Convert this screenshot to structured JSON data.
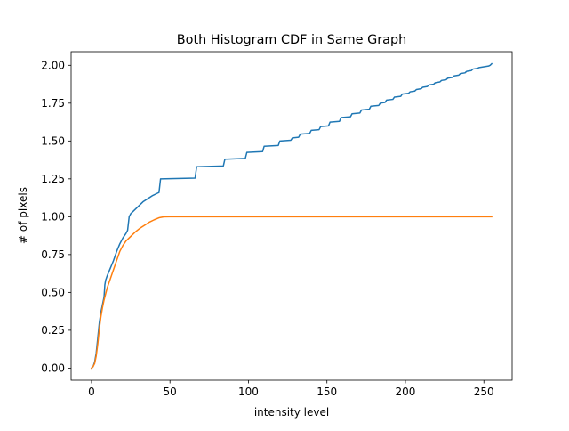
{
  "chart_data": {
    "type": "line",
    "title": "Both Histogram CDF in Same Graph",
    "xlabel": "intensity level",
    "ylabel": "# of pixels",
    "xlim": [
      -13,
      268
    ],
    "ylim": [
      -0.08,
      2.09
    ],
    "x_ticks": [
      0,
      50,
      100,
      150,
      200,
      250
    ],
    "x_tick_labels": [
      "0",
      "50",
      "100",
      "150",
      "200",
      "250"
    ],
    "y_ticks": [
      0.0,
      0.25,
      0.5,
      0.75,
      1.0,
      1.25,
      1.5,
      1.75,
      2.0
    ],
    "y_tick_labels": [
      "0.00",
      "0.25",
      "0.50",
      "0.75",
      "1.00",
      "1.25",
      "1.50",
      "1.75",
      "2.00"
    ],
    "grid": false,
    "legend": "none",
    "series": [
      {
        "color": "#1f77b4",
        "points": [
          [
            0,
            0.0
          ],
          [
            1,
            0.01
          ],
          [
            2,
            0.04
          ],
          [
            3,
            0.1
          ],
          [
            4,
            0.2
          ],
          [
            5,
            0.3
          ],
          [
            6,
            0.37
          ],
          [
            7,
            0.42
          ],
          [
            8,
            0.47
          ],
          [
            8.5,
            0.55
          ],
          [
            9,
            0.58
          ],
          [
            10,
            0.61
          ],
          [
            12,
            0.66
          ],
          [
            14,
            0.71
          ],
          [
            16,
            0.77
          ],
          [
            18,
            0.82
          ],
          [
            20,
            0.86
          ],
          [
            22,
            0.89
          ],
          [
            23,
            0.91
          ],
          [
            24,
            1.0
          ],
          [
            25,
            1.02
          ],
          [
            27,
            1.04
          ],
          [
            30,
            1.07
          ],
          [
            33,
            1.1
          ],
          [
            36,
            1.12
          ],
          [
            39,
            1.14
          ],
          [
            42,
            1.155
          ],
          [
            43,
            1.16
          ],
          [
            44,
            1.25
          ],
          [
            66,
            1.255
          ],
          [
            67,
            1.33
          ],
          [
            84,
            1.335
          ],
          [
            85,
            1.38
          ],
          [
            98,
            1.385
          ],
          [
            99,
            1.425
          ],
          [
            109,
            1.43
          ],
          [
            110,
            1.465
          ],
          [
            119,
            1.47
          ],
          [
            120,
            1.5
          ],
          [
            127,
            1.505
          ],
          [
            128,
            1.52
          ],
          [
            132,
            1.525
          ],
          [
            133,
            1.545
          ],
          [
            139,
            1.55
          ],
          [
            140,
            1.57
          ],
          [
            145,
            1.575
          ],
          [
            146,
            1.595
          ],
          [
            151,
            1.6
          ],
          [
            152,
            1.625
          ],
          [
            158,
            1.63
          ],
          [
            159,
            1.655
          ],
          [
            165,
            1.66
          ],
          [
            166,
            1.68
          ],
          [
            171,
            1.685
          ],
          [
            172,
            1.705
          ],
          [
            177,
            1.71
          ],
          [
            178,
            1.73
          ],
          [
            183,
            1.735
          ],
          [
            184,
            1.75
          ],
          [
            187,
            1.755
          ],
          [
            188,
            1.77
          ],
          [
            192,
            1.775
          ],
          [
            193,
            1.79
          ],
          [
            197,
            1.795
          ],
          [
            198,
            1.81
          ],
          [
            202,
            1.815
          ],
          [
            203,
            1.825
          ],
          [
            206,
            1.83
          ],
          [
            207,
            1.84
          ],
          [
            210,
            1.845
          ],
          [
            211,
            1.855
          ],
          [
            214,
            1.86
          ],
          [
            215,
            1.87
          ],
          [
            218,
            1.875
          ],
          [
            219,
            1.885
          ],
          [
            222,
            1.89
          ],
          [
            223,
            1.9
          ],
          [
            226,
            1.905
          ],
          [
            227,
            1.915
          ],
          [
            230,
            1.92
          ],
          [
            231,
            1.93
          ],
          [
            234,
            1.935
          ],
          [
            235,
            1.945
          ],
          [
            238,
            1.95
          ],
          [
            239,
            1.96
          ],
          [
            242,
            1.965
          ],
          [
            243,
            1.975
          ],
          [
            246,
            1.98
          ],
          [
            247,
            1.985
          ],
          [
            250,
            1.99
          ],
          [
            253,
            1.995
          ],
          [
            254,
            2.0
          ],
          [
            255,
            2.01
          ]
        ]
      },
      {
        "color": "#ff7f0e",
        "points": [
          [
            0,
            0.0
          ],
          [
            1,
            0.01
          ],
          [
            2,
            0.03
          ],
          [
            3,
            0.08
          ],
          [
            4,
            0.16
          ],
          [
            5,
            0.26
          ],
          [
            6,
            0.34
          ],
          [
            7,
            0.4
          ],
          [
            8,
            0.45
          ],
          [
            9,
            0.49
          ],
          [
            10,
            0.53
          ],
          [
            12,
            0.59
          ],
          [
            14,
            0.65
          ],
          [
            16,
            0.71
          ],
          [
            18,
            0.77
          ],
          [
            20,
            0.81
          ],
          [
            22,
            0.84
          ],
          [
            25,
            0.87
          ],
          [
            28,
            0.9
          ],
          [
            31,
            0.925
          ],
          [
            34,
            0.945
          ],
          [
            37,
            0.965
          ],
          [
            40,
            0.98
          ],
          [
            43,
            0.993
          ],
          [
            46,
            0.999
          ],
          [
            50,
            1.0
          ],
          [
            100,
            1.0
          ],
          [
            150,
            1.0
          ],
          [
            200,
            1.0
          ],
          [
            255,
            1.0
          ]
        ]
      }
    ]
  }
}
